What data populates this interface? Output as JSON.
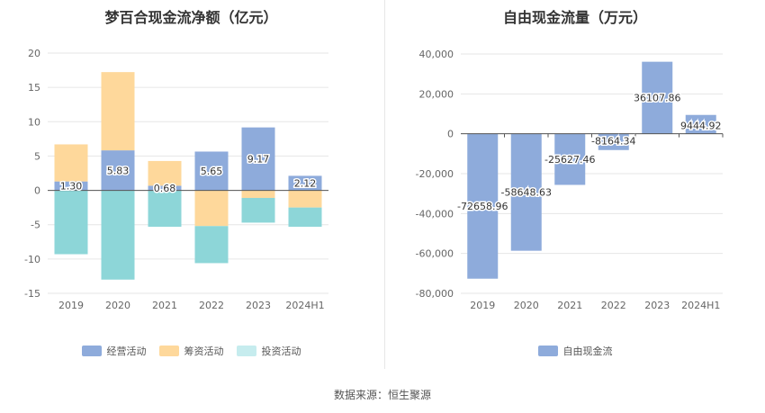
{
  "footer": {
    "source": "数据来源：恒生聚源"
  },
  "colors": {
    "operating": "#8eabdb",
    "financing": "#fed89b",
    "investing": "#8dd6d8",
    "fcf": "#8eabdb",
    "grid": "#e6e6e6",
    "axis": "#555555"
  },
  "chart_data": [
    {
      "type": "bar",
      "stacked": true,
      "title": "梦百合现金流净额（亿元）",
      "categories": [
        "2019",
        "2020",
        "2021",
        "2022",
        "2023",
        "2024H1"
      ],
      "ylim": [
        -15,
        20
      ],
      "yticks": [
        -15,
        -10,
        -5,
        0,
        5,
        10,
        15,
        20
      ],
      "series": [
        {
          "name": "经营活动",
          "color": "#8eabdb",
          "values": [
            1.3,
            5.83,
            0.68,
            5.65,
            9.17,
            2.12
          ],
          "labels": [
            "1.30",
            "5.83",
            "0.68",
            "5.65",
            "9.17",
            "2.12"
          ]
        },
        {
          "name": "筹资活动",
          "color": "#fed89b",
          "values": [
            5.4,
            11.4,
            3.6,
            -5.2,
            -1.1,
            -2.5
          ]
        },
        {
          "name": "投资活动",
          "color": "#8dd6d8",
          "values": [
            -9.3,
            -13.0,
            -5.3,
            -5.4,
            -3.6,
            -2.8
          ]
        }
      ],
      "legend": [
        "经营活动",
        "筹资活动",
        "投资活动"
      ],
      "legend_colors": [
        "#8eabdb",
        "#fed89b",
        "#c6ecee"
      ],
      "legend_position": "bottom",
      "grid": true
    },
    {
      "type": "bar",
      "subtype": "waterfall",
      "title": "自由现金流量（万元）",
      "categories": [
        "2019",
        "2020",
        "2021",
        "2022",
        "2023",
        "2024H1"
      ],
      "ylim": [
        -80000,
        40000
      ],
      "yticks": [
        -80000,
        -60000,
        -40000,
        -20000,
        0,
        20000,
        40000
      ],
      "ytick_labels": [
        "-80,000",
        "-60,000",
        "-40,000",
        "-20,000",
        "0",
        "20,000",
        "40,000"
      ],
      "series": [
        {
          "name": "自由现金流",
          "color": "#8eabdb",
          "values": [
            -72658.96,
            -58648.63,
            -25627.46,
            -8164.34,
            36107.86,
            9444.92
          ],
          "labels": [
            "-72658.96",
            "-58648.63",
            "-25627.46",
            "-8164.34",
            "36107.86",
            "9444.92"
          ]
        }
      ],
      "legend": [
        "自由现金流"
      ],
      "legend_position": "bottom",
      "grid": true
    }
  ]
}
